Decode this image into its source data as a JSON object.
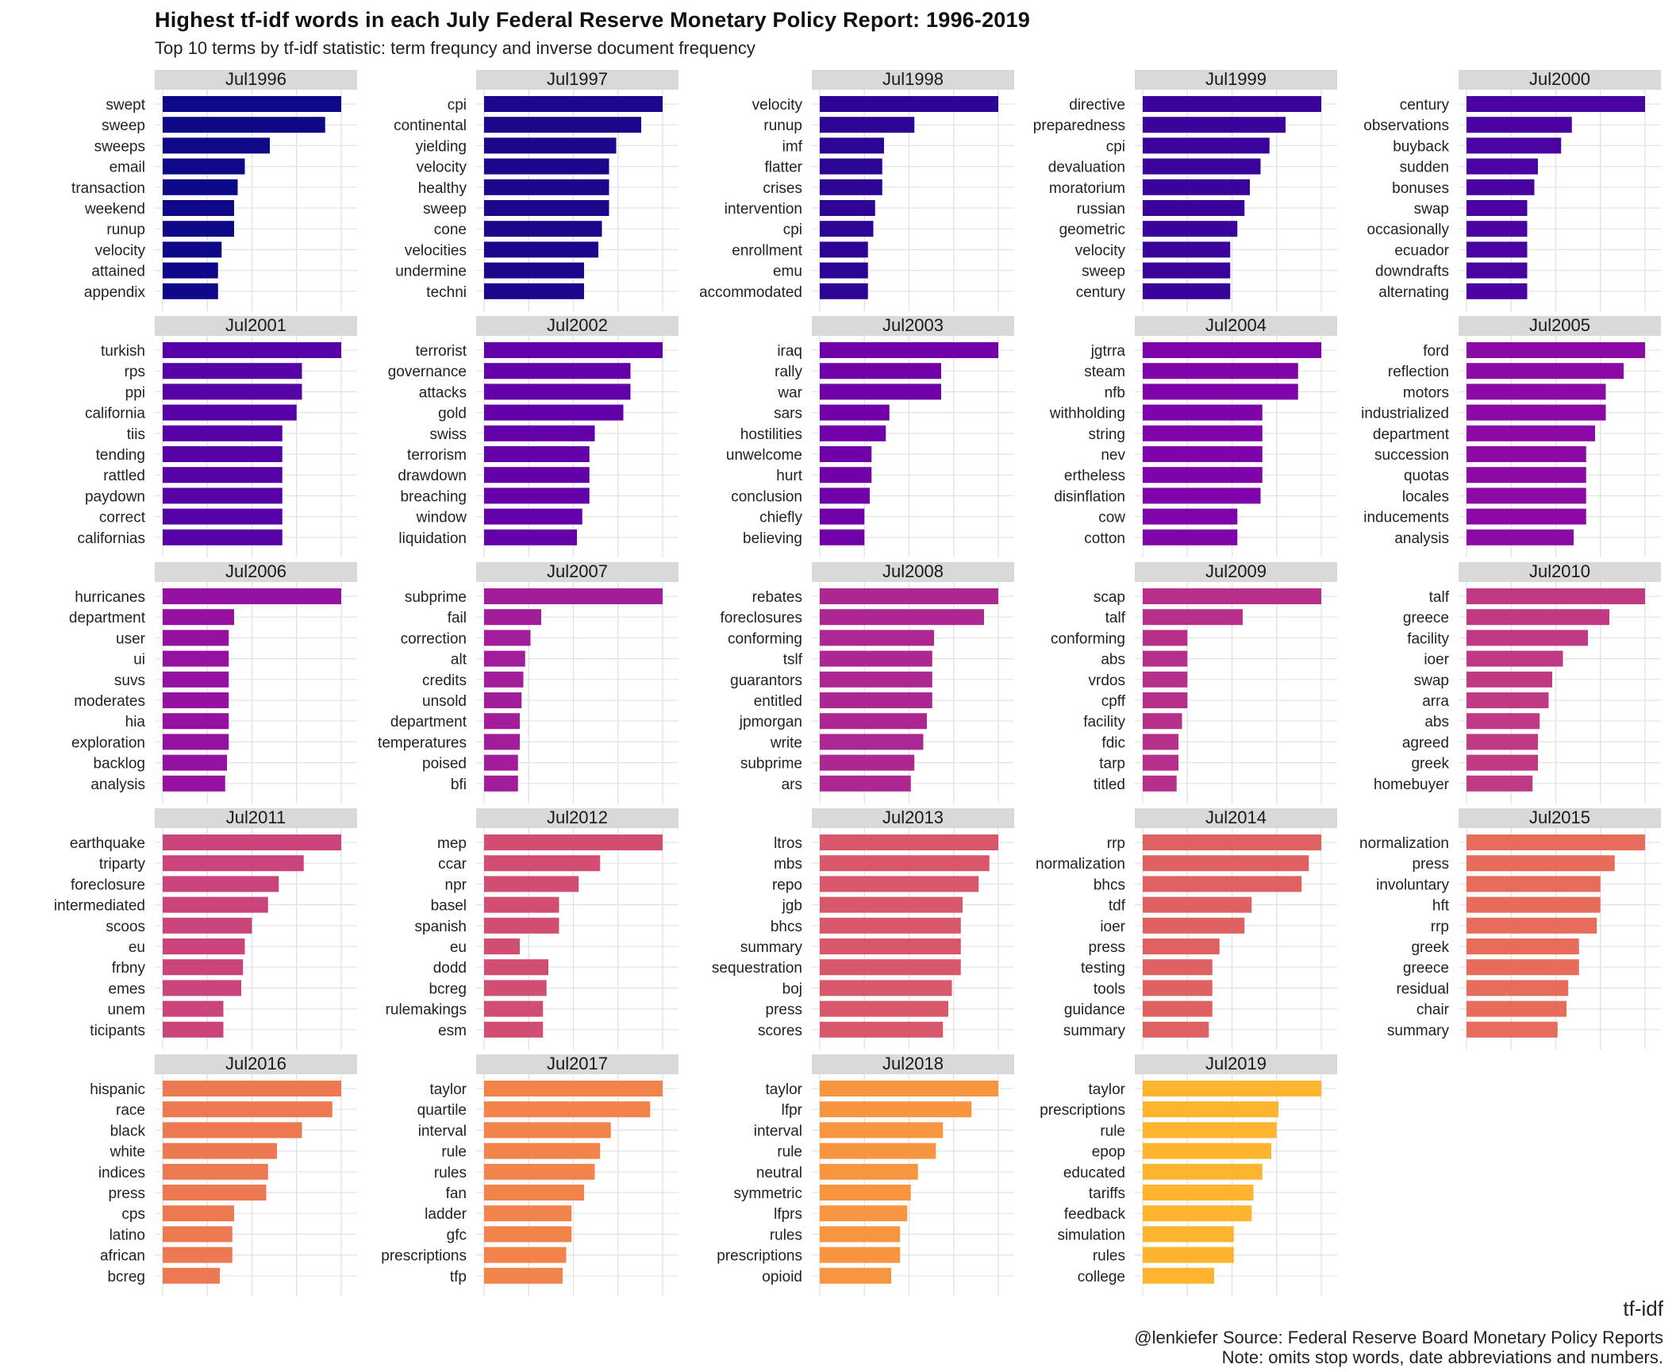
{
  "title": "Highest tf-idf words in each July Federal Reserve Monetary Policy Report: 1996-2019",
  "subtitle": "Top 10 terms by tf-idf statistic: term frequncy and inverse document frequency",
  "x_axis_label": "tf-idf",
  "caption_line1": "@lenkiefer Source: Federal Reserve Board Monetary Policy Reports",
  "caption_line2": "Note: omits stop words, date abbreviations and numbers.",
  "colors": {
    "strip_background": "#d9d9d9",
    "gridline": "#e3e3e3",
    "palette": [
      "#0d0887",
      "#1e068c",
      "#2d0594",
      "#3a049a",
      "#4903a0",
      "#5702a5",
      "#6300a7",
      "#7001a8",
      "#7e03a8",
      "#8b0aa5",
      "#9511a1",
      "#a21d9a",
      "#ad2793",
      "#b6308b",
      "#c03a83",
      "#c9447a",
      "#d14e72",
      "#d8576b",
      "#df6263",
      "#e66c5c",
      "#ed7953",
      "#f2844b",
      "#f89540",
      "#fdb42f",
      "#fccd25"
    ]
  },
  "chart_data": {
    "type": "bar",
    "orientation": "horizontal",
    "facet_layout": "5 columns x 5 rows, free y, free x",
    "grid": true,
    "legend": "none",
    "xlabel": "tf-idf",
    "panels": [
      {
        "label": "Jul1996",
        "terms": [
          "swept",
          "sweep",
          "sweeps",
          "email",
          "transaction",
          "weekend",
          "runup",
          "velocity",
          "attained",
          "appendix"
        ],
        "values": [
          1.0,
          0.91,
          0.6,
          0.46,
          0.42,
          0.4,
          0.4,
          0.33,
          0.31,
          0.31
        ]
      },
      {
        "label": "Jul1997",
        "terms": [
          "cpi",
          "continental",
          "yielding",
          "velocity",
          "healthy",
          "sweep",
          "cone",
          "velocities",
          "undermine",
          "techni"
        ],
        "values": [
          1.0,
          0.88,
          0.74,
          0.7,
          0.7,
          0.7,
          0.66,
          0.64,
          0.56,
          0.56
        ]
      },
      {
        "label": "Jul1998",
        "terms": [
          "velocity",
          "runup",
          "imf",
          "flatter",
          "crises",
          "intervention",
          "cpi",
          "enrollment",
          "emu",
          "accommodated"
        ],
        "values": [
          1.0,
          0.53,
          0.36,
          0.35,
          0.35,
          0.31,
          0.3,
          0.27,
          0.27,
          0.27
        ]
      },
      {
        "label": "Jul1999",
        "terms": [
          "directive",
          "preparedness",
          "cpi",
          "devaluation",
          "moratorium",
          "russian",
          "geometric",
          "velocity",
          "sweep",
          "century"
        ],
        "values": [
          1.0,
          0.8,
          0.71,
          0.66,
          0.6,
          0.57,
          0.53,
          0.49,
          0.49,
          0.49
        ]
      },
      {
        "label": "Jul2000",
        "terms": [
          "century",
          "observations",
          "buyback",
          "sudden",
          "bonuses",
          "swap",
          "occasionally",
          "ecuador",
          "downdrafts",
          "alternating"
        ],
        "values": [
          1.0,
          0.59,
          0.53,
          0.4,
          0.38,
          0.34,
          0.34,
          0.34,
          0.34,
          0.34
        ]
      },
      {
        "label": "Jul2001",
        "terms": [
          "turkish",
          "rps",
          "ppi",
          "california",
          "tiis",
          "tending",
          "rattled",
          "paydown",
          "correct",
          "californias"
        ],
        "values": [
          1.0,
          0.78,
          0.78,
          0.75,
          0.67,
          0.67,
          0.67,
          0.67,
          0.67,
          0.67
        ]
      },
      {
        "label": "Jul2002",
        "terms": [
          "terrorist",
          "governance",
          "attacks",
          "gold",
          "swiss",
          "terrorism",
          "drawdown",
          "breaching",
          "window",
          "liquidation"
        ],
        "values": [
          1.0,
          0.82,
          0.82,
          0.78,
          0.62,
          0.59,
          0.59,
          0.59,
          0.55,
          0.52
        ]
      },
      {
        "label": "Jul2003",
        "terms": [
          "iraq",
          "rally",
          "war",
          "sars",
          "hostilities",
          "unwelcome",
          "hurt",
          "conclusion",
          "chiefly",
          "believing"
        ],
        "values": [
          1.0,
          0.68,
          0.68,
          0.39,
          0.37,
          0.29,
          0.29,
          0.28,
          0.25,
          0.25
        ]
      },
      {
        "label": "Jul2004",
        "terms": [
          "jgtrra",
          "steam",
          "nfb",
          "withholding",
          "string",
          "nev",
          "ertheless",
          "disinflation",
          "cow",
          "cotton"
        ],
        "values": [
          1.0,
          0.87,
          0.87,
          0.67,
          0.67,
          0.67,
          0.67,
          0.66,
          0.53,
          0.53
        ]
      },
      {
        "label": "Jul2005",
        "terms": [
          "ford",
          "reflection",
          "motors",
          "industrialized",
          "department",
          "succession",
          "quotas",
          "locales",
          "inducements",
          "analysis"
        ],
        "values": [
          1.0,
          0.88,
          0.78,
          0.78,
          0.72,
          0.67,
          0.67,
          0.67,
          0.67,
          0.6
        ]
      },
      {
        "label": "Jul2006",
        "terms": [
          "hurricanes",
          "department",
          "user",
          "ui",
          "suvs",
          "moderates",
          "hia",
          "exploration",
          "backlog",
          "analysis"
        ],
        "values": [
          1.0,
          0.4,
          0.37,
          0.37,
          0.37,
          0.37,
          0.37,
          0.37,
          0.36,
          0.35
        ]
      },
      {
        "label": "Jul2007",
        "terms": [
          "subprime",
          "fail",
          "correction",
          "alt",
          "credits",
          "unsold",
          "department",
          "temperatures",
          "poised",
          "bfi"
        ],
        "values": [
          1.0,
          0.32,
          0.26,
          0.23,
          0.22,
          0.21,
          0.2,
          0.2,
          0.19,
          0.19
        ]
      },
      {
        "label": "Jul2008",
        "terms": [
          "rebates",
          "foreclosures",
          "conforming",
          "tslf",
          "guarantors",
          "entitled",
          "jpmorgan",
          "write",
          "subprime",
          "ars"
        ],
        "values": [
          1.0,
          0.92,
          0.64,
          0.63,
          0.63,
          0.63,
          0.6,
          0.58,
          0.53,
          0.51
        ]
      },
      {
        "label": "Jul2009",
        "terms": [
          "scap",
          "talf",
          "conforming",
          "abs",
          "vrdos",
          "cpff",
          "facility",
          "fdic",
          "tarp",
          "titled"
        ],
        "values": [
          1.0,
          0.56,
          0.25,
          0.25,
          0.25,
          0.25,
          0.22,
          0.2,
          0.2,
          0.19
        ]
      },
      {
        "label": "Jul2010",
        "terms": [
          "talf",
          "greece",
          "facility",
          "ioer",
          "swap",
          "arra",
          "abs",
          "agreed",
          "greek",
          "homebuyer"
        ],
        "values": [
          1.0,
          0.8,
          0.68,
          0.54,
          0.48,
          0.46,
          0.41,
          0.4,
          0.4,
          0.37
        ]
      },
      {
        "label": "Jul2011",
        "terms": [
          "earthquake",
          "triparty",
          "foreclosure",
          "intermediated",
          "scoos",
          "eu",
          "frbny",
          "emes",
          "unem",
          "ticipants"
        ],
        "values": [
          1.0,
          0.79,
          0.65,
          0.59,
          0.5,
          0.46,
          0.45,
          0.44,
          0.34,
          0.34
        ]
      },
      {
        "label": "Jul2012",
        "terms": [
          "mep",
          "ccar",
          "npr",
          "basel",
          "spanish",
          "eu",
          "dodd",
          "bcreg",
          "rulemakings",
          "esm"
        ],
        "values": [
          1.0,
          0.65,
          0.53,
          0.42,
          0.42,
          0.2,
          0.36,
          0.35,
          0.33,
          0.33
        ]
      },
      {
        "label": "Jul2013",
        "terms": [
          "ltros",
          "mbs",
          "repo",
          "jgb",
          "bhcs",
          "summary",
          "sequestration",
          "boj",
          "press",
          "scores"
        ],
        "values": [
          1.0,
          0.95,
          0.89,
          0.8,
          0.79,
          0.79,
          0.79,
          0.74,
          0.72,
          0.69
        ]
      },
      {
        "label": "Jul2014",
        "terms": [
          "rrp",
          "normalization",
          "bhcs",
          "tdf",
          "ioer",
          "press",
          "testing",
          "tools",
          "guidance",
          "summary"
        ],
        "values": [
          1.0,
          0.93,
          0.89,
          0.61,
          0.57,
          0.43,
          0.39,
          0.39,
          0.39,
          0.37
        ]
      },
      {
        "label": "Jul2015",
        "terms": [
          "normalization",
          "press",
          "involuntary",
          "hft",
          "rrp",
          "greek",
          "greece",
          "residual",
          "chair",
          "summary"
        ],
        "values": [
          1.0,
          0.83,
          0.75,
          0.75,
          0.73,
          0.63,
          0.63,
          0.57,
          0.56,
          0.51
        ]
      },
      {
        "label": "Jul2016",
        "terms": [
          "hispanic",
          "race",
          "black",
          "white",
          "indices",
          "press",
          "cps",
          "latino",
          "african",
          "bcreg"
        ],
        "values": [
          1.0,
          0.95,
          0.78,
          0.64,
          0.59,
          0.58,
          0.4,
          0.39,
          0.39,
          0.32
        ]
      },
      {
        "label": "Jul2017",
        "terms": [
          "taylor",
          "quartile",
          "interval",
          "rule",
          "rules",
          "fan",
          "ladder",
          "gfc",
          "prescriptions",
          "tfp"
        ],
        "values": [
          1.0,
          0.93,
          0.71,
          0.65,
          0.62,
          0.56,
          0.49,
          0.49,
          0.46,
          0.44
        ]
      },
      {
        "label": "Jul2018",
        "terms": [
          "taylor",
          "lfpr",
          "interval",
          "rule",
          "neutral",
          "symmetric",
          "lfprs",
          "rules",
          "prescriptions",
          "opioid"
        ],
        "values": [
          1.0,
          0.85,
          0.69,
          0.65,
          0.55,
          0.51,
          0.49,
          0.45,
          0.45,
          0.4
        ]
      },
      {
        "label": "Jul2019",
        "terms": [
          "taylor",
          "prescriptions",
          "rule",
          "epop",
          "educated",
          "tariffs",
          "feedback",
          "simulation",
          "rules",
          "college"
        ],
        "values": [
          1.0,
          0.76,
          0.75,
          0.72,
          0.67,
          0.62,
          0.61,
          0.51,
          0.51,
          0.4
        ]
      }
    ]
  }
}
